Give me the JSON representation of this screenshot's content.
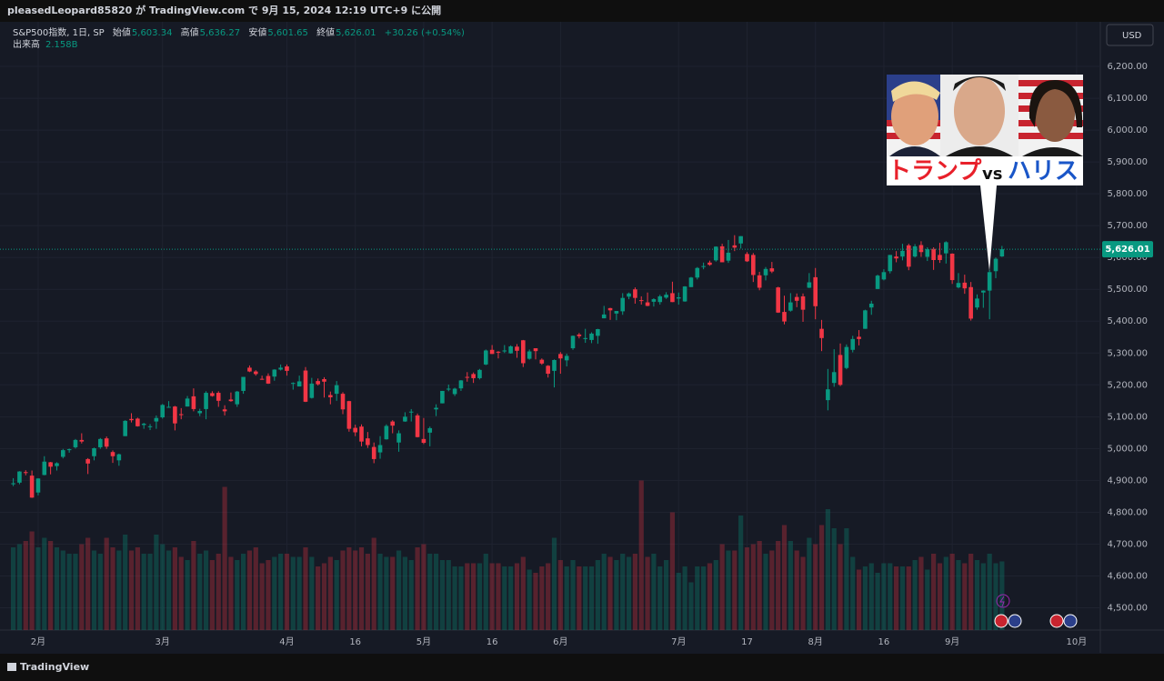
{
  "header": {
    "published": "pleasedLeopard85820 が TradingView.com で 9月 15, 2024 12:19 UTC+9 に公開"
  },
  "chart_data": {
    "type": "candlestick",
    "title": "S&P500指数, 1日, SP",
    "ohlc_legend": [
      {
        "label": "始値",
        "value": "5,603.34"
      },
      {
        "label": "高値",
        "value": "5,636.27"
      },
      {
        "label": "安値",
        "value": "5,601.65"
      },
      {
        "label": "終値",
        "value": "5,626.01"
      }
    ],
    "change": "+30.26 (+0.54%)",
    "volume_title": "出来高",
    "volume_value_label": "2.158B",
    "currency": "USD",
    "categories": [
      null,
      null,
      null,
      null,
      "2月",
      null,
      null,
      null,
      null,
      null,
      null,
      null,
      null,
      null,
      null,
      null,
      null,
      null,
      null,
      null,
      null,
      null,
      null,
      null,
      "3月",
      null,
      null,
      null,
      null,
      null,
      null,
      null,
      null,
      null,
      null,
      null,
      null,
      null,
      null,
      null,
      null,
      null,
      null,
      null,
      "4月",
      null,
      null,
      null,
      null,
      null,
      null,
      null,
      null,
      null,
      null,
      "16",
      null,
      null,
      null,
      null,
      null,
      null,
      null,
      null,
      null,
      null,
      "5月",
      null,
      null,
      null,
      null,
      null,
      null,
      null,
      null,
      null,
      null,
      "16",
      null,
      null,
      null,
      null,
      null,
      null,
      null,
      null,
      null,
      null,
      "6月",
      null,
      null,
      null,
      null,
      null,
      null,
      null,
      null,
      null,
      null,
      null,
      null,
      null,
      null,
      null,
      null,
      null,
      null,
      "7月",
      null,
      null,
      null,
      null,
      null,
      null,
      null,
      null,
      null,
      null,
      "17",
      null,
      null,
      null,
      null,
      null,
      null,
      null,
      null,
      null,
      null,
      "8月",
      null,
      null,
      null,
      null,
      null,
      null,
      null,
      null,
      null,
      null,
      "16",
      null,
      null,
      null,
      null,
      null,
      null,
      null,
      null,
      null,
      null,
      "9月",
      null,
      null,
      null,
      null,
      null,
      null,
      null,
      null,
      null,
      null,
      null,
      null,
      null,
      null,
      null,
      null,
      null,
      null,
      null,
      "10月",
      null,
      null
    ],
    "open": [
      4888,
      4893,
      4926,
      4915,
      4862,
      4917,
      4957,
      4945,
      4974,
      4995,
      5004,
      5027,
      4967,
      4976,
      5004,
      5032,
      4989,
      4963,
      5039,
      5093,
      5094,
      5074,
      5068,
      5085,
      5098,
      5131,
      5132,
      5108,
      5132,
      5164,
      5111,
      5124,
      5174,
      5175,
      5123,
      5154,
      5139,
      5181,
      5254,
      5242,
      5219,
      5228,
      5226,
      5248,
      5258,
      5204,
      5195,
      5245,
      5159,
      5212,
      5218,
      5168,
      5172,
      5172,
      5149,
      5065,
      5069,
      5032,
      5005,
      4988,
      5029,
      5085,
      5019,
      5085,
      5114,
      5104,
      5030,
      5050,
      5123,
      5142,
      5188,
      5171,
      5189,
      5225,
      5234,
      5221,
      5264,
      5310,
      5304,
      5305,
      5299,
      5320,
      5340,
      5282,
      5315,
      5279,
      5260,
      5244,
      5297,
      5277,
      5315,
      5358,
      5344,
      5341,
      5354,
      5409,
      5441,
      5424,
      5431,
      5477,
      5500,
      5466,
      5459,
      5461,
      5460,
      5474,
      5488,
      5471,
      5462,
      5507,
      5537,
      5572,
      5584,
      5591,
      5635,
      5590,
      5638,
      5644,
      5611,
      5608,
      5544,
      5544,
      5566,
      5506,
      5429,
      5433,
      5476,
      5478,
      5505,
      5538,
      5376,
      5152,
      5206,
      5294,
      5253,
      5310,
      5351,
      5376,
      5443,
      5501,
      5531,
      5557,
      5603,
      5603,
      5638,
      5603,
      5639,
      5602,
      5627,
      5608,
      5613,
      5612,
      5506,
      5521,
      5507,
      5443,
      5490,
      5496,
      5557,
      5603.34,
      null,
      null,
      null,
      null,
      null,
      null,
      null,
      null,
      null,
      null,
      null,
      null,
      null,
      null
    ],
    "high": [
      4907,
      4929,
      4932,
      4931,
      4907,
      4976,
      4958,
      4957,
      4999,
      5000,
      5030,
      5048,
      4970,
      5003,
      5033,
      5038,
      4994,
      4984,
      5089,
      5111,
      5097,
      5081,
      5077,
      5104,
      5140,
      5149,
      5134,
      5127,
      5165,
      5189,
      5125,
      5180,
      5180,
      5180,
      5136,
      5176,
      5181,
      5225,
      5261,
      5246,
      5229,
      5236,
      5249,
      5264,
      5264,
      5208,
      5229,
      5256,
      5222,
      5220,
      5224,
      5179,
      5212,
      5177,
      5150,
      5075,
      5076,
      5052,
      5019,
      5039,
      5076,
      5089,
      5057,
      5114,
      5124,
      5110,
      5096,
      5069,
      5139,
      5181,
      5201,
      5191,
      5215,
      5240,
      5239,
      5250,
      5311,
      5325,
      5306,
      5325,
      5324,
      5328,
      5341,
      5311,
      5315,
      5283,
      5262,
      5280,
      5303,
      5298,
      5355,
      5363,
      5376,
      5365,
      5376,
      5448,
      5442,
      5432,
      5488,
      5490,
      5506,
      5478,
      5490,
      5472,
      5483,
      5491,
      5524,
      5490,
      5510,
      5539,
      5570,
      5584,
      5590,
      5635,
      5643,
      5655,
      5670,
      5667,
      5617,
      5614,
      5555,
      5570,
      5586,
      5508,
      5480,
      5488,
      5487,
      5487,
      5551,
      5567,
      5404,
      5250,
      5312,
      5330,
      5327,
      5354,
      5372,
      5436,
      5464,
      5546,
      5563,
      5608,
      5620,
      5643,
      5643,
      5642,
      5651,
      5632,
      5632,
      5646,
      5651,
      5613,
      5551,
      5546,
      5523,
      5484,
      5497,
      5561,
      5600,
      5636.27,
      null,
      null,
      null,
      null,
      null,
      null,
      null,
      null,
      null,
      null,
      null,
      null,
      null,
      null
    ],
    "low": [
      4882,
      4888,
      4916,
      4845,
      4853,
      4916,
      4919,
      4931,
      4969,
      4987,
      5000,
      5016,
      4920,
      4963,
      4999,
      4999,
      4955,
      4946,
      5039,
      5082,
      5069,
      5062,
      5058,
      5062,
      5094,
      5128,
      5057,
      5092,
      5132,
      5117,
      5102,
      5092,
      5163,
      5131,
      5104,
      5147,
      5131,
      5172,
      5240,
      5229,
      5216,
      5203,
      5213,
      5245,
      5229,
      5185,
      5195,
      5146,
      5157,
      5198,
      5160,
      5139,
      5150,
      5108,
      5053,
      5039,
      5007,
      5002,
      4954,
      4968,
      5028,
      5048,
      4990,
      5084,
      5085,
      5035,
      5014,
      5007,
      5102,
      5142,
      5180,
      5165,
      5181,
      5210,
      5206,
      5217,
      5262,
      5297,
      5283,
      5300,
      5298,
      5285,
      5256,
      5279,
      5280,
      5263,
      5223,
      5192,
      5235,
      5258,
      5310,
      5346,
      5332,
      5331,
      5329,
      5409,
      5404,
      5403,
      5420,
      5469,
      5455,
      5452,
      5447,
      5446,
      5452,
      5470,
      5460,
      5452,
      5461,
      5507,
      5531,
      5563,
      5574,
      5587,
      5585,
      5583,
      5620,
      5628,
      5586,
      5523,
      5497,
      5528,
      5551,
      5426,
      5390,
      5430,
      5444,
      5398,
      5504,
      5406,
      5306,
      5120,
      5194,
      5196,
      5249,
      5302,
      5324,
      5376,
      5420,
      5501,
      5528,
      5550,
      5585,
      5591,
      5560,
      5600,
      5602,
      5589,
      5561,
      5583,
      5581,
      5517,
      5503,
      5486,
      5402,
      5436,
      5442,
      5406,
      5535,
      5601.65,
      null,
      null,
      null,
      null,
      null,
      null,
      null,
      null,
      null,
      null,
      null,
      null,
      null,
      null
    ],
    "close": [
      4891,
      4928,
      4925,
      4846,
      4906,
      4959,
      4943,
      4954,
      4995,
      4998,
      5027,
      5022,
      4953,
      5001,
      5030,
      5006,
      4976,
      4982,
      5087,
      5089,
      5070,
      5078,
      5070,
      5096,
      5137,
      5131,
      5079,
      5105,
      5157,
      5124,
      5118,
      5175,
      5165,
      5150,
      5117,
      5149,
      5179,
      5225,
      5242,
      5234,
      5218,
      5204,
      5248,
      5254,
      5244,
      5206,
      5211,
      5147,
      5204,
      5202,
      5210,
      5161,
      5199,
      5123,
      5062,
      5051,
      5022,
      5011,
      4967,
      5011,
      5071,
      5072,
      5048,
      5100,
      5116,
      5036,
      5018,
      5064,
      5128,
      5181,
      5188,
      5188,
      5214,
      5223,
      5221,
      5247,
      5308,
      5297,
      5303,
      5308,
      5321,
      5307,
      5268,
      5305,
      5306,
      5267,
      5235,
      5278,
      5283,
      5291,
      5354,
      5353,
      5347,
      5361,
      5375,
      5421,
      5434,
      5432,
      5473,
      5487,
      5473,
      5465,
      5448,
      5469,
      5478,
      5483,
      5460,
      5475,
      5509,
      5537,
      5567,
      5573,
      5577,
      5634,
      5585,
      5615,
      5631,
      5667,
      5588,
      5545,
      5505,
      5564,
      5556,
      5427,
      5399,
      5459,
      5464,
      5436,
      5522,
      5447,
      5347,
      5186,
      5240,
      5200,
      5319,
      5344,
      5344,
      5434,
      5455,
      5543,
      5554,
      5608,
      5597,
      5621,
      5571,
      5635,
      5617,
      5626,
      5592,
      5592,
      5648,
      5529,
      5520,
      5503,
      5408,
      5471,
      5496,
      5554,
      5596,
      5626.01,
      null,
      null,
      null,
      null,
      null,
      null,
      null,
      null,
      null,
      null,
      null,
      null,
      null,
      null
    ],
    "volume": [
      2.6,
      2.7,
      2.8,
      3.1,
      2.6,
      2.9,
      2.8,
      2.6,
      2.5,
      2.4,
      2.4,
      2.7,
      2.9,
      2.5,
      2.4,
      2.9,
      2.6,
      2.5,
      3.0,
      2.5,
      2.6,
      2.4,
      2.4,
      3.0,
      2.7,
      2.5,
      2.6,
      2.3,
      2.2,
      2.8,
      2.4,
      2.5,
      2.2,
      2.4,
      4.5,
      2.3,
      2.2,
      2.4,
      2.5,
      2.6,
      2.1,
      2.2,
      2.3,
      2.4,
      2.4,
      2.3,
      2.3,
      2.6,
      2.3,
      2.0,
      2.1,
      2.3,
      2.2,
      2.5,
      2.6,
      2.5,
      2.6,
      2.4,
      2.9,
      2.4,
      2.3,
      2.3,
      2.5,
      2.3,
      2.2,
      2.6,
      2.7,
      2.4,
      2.4,
      2.2,
      2.2,
      2.0,
      2.0,
      2.1,
      2.1,
      2.1,
      2.4,
      2.1,
      2.1,
      2.0,
      2.0,
      2.1,
      2.3,
      1.9,
      1.8,
      2.0,
      2.1,
      2.9,
      2.2,
      2.0,
      2.2,
      2.0,
      2.0,
      2.0,
      2.2,
      2.4,
      2.3,
      2.2,
      2.4,
      2.3,
      2.4,
      4.7,
      2.3,
      2.4,
      2.0,
      2.2,
      3.7,
      1.8,
      2.0,
      1.5,
      2.0,
      2.0,
      2.1,
      2.2,
      2.7,
      2.5,
      2.5,
      3.6,
      2.6,
      2.7,
      2.8,
      2.4,
      2.5,
      2.8,
      3.3,
      2.8,
      2.5,
      2.3,
      2.9,
      2.7,
      3.3,
      3.8,
      3.2,
      2.7,
      3.2,
      2.3,
      1.9,
      2.0,
      2.1,
      1.8,
      2.1,
      2.1,
      2.0,
      2.0,
      2.0,
      2.2,
      2.3,
      1.9,
      2.4,
      2.1,
      2.3,
      2.4,
      2.2,
      2.1,
      2.4,
      2.2,
      2.1,
      2.4,
      2.1,
      2.158,
      null,
      null,
      null,
      null,
      null,
      null,
      null,
      null,
      null,
      null,
      null,
      null,
      null,
      null
    ],
    "up_color": "#089981",
    "down_color": "#f23645",
    "ylim": [
      4430,
      6340
    ],
    "yticks": [
      {
        "value": 4500,
        "label": "4,500.00"
      },
      {
        "value": 4600,
        "label": "4,600.00"
      },
      {
        "value": 4700,
        "label": "4,700.00"
      },
      {
        "value": 4800,
        "label": "4,800.00"
      },
      {
        "value": 4900,
        "label": "4,900.00"
      },
      {
        "value": 5000,
        "label": "5,000.00"
      },
      {
        "value": 5100,
        "label": "5,100.00"
      },
      {
        "value": 5200,
        "label": "5,200.00"
      },
      {
        "value": 5300,
        "label": "5,300.00"
      },
      {
        "value": 5400,
        "label": "5,400.00"
      },
      {
        "value": 5500,
        "label": "5,500.00"
      },
      {
        "value": 5600,
        "label": "5,600.00"
      },
      {
        "value": 5700,
        "label": "5,700.00"
      },
      {
        "value": 5800,
        "label": "5,800.00"
      },
      {
        "value": 5900,
        "label": "5,900.00"
      },
      {
        "value": 6000,
        "label": "6,000.00"
      },
      {
        "value": 6100,
        "label": "6,100.00"
      },
      {
        "value": 6200,
        "label": "6,200.00"
      }
    ],
    "grid": true,
    "last_price": {
      "value": 5626.01,
      "label": "5,626.01"
    },
    "annotation": {
      "left": "トランプ",
      "middle": "vs",
      "right": "ハリス"
    }
  },
  "footer": {
    "brand": "TradingView"
  }
}
